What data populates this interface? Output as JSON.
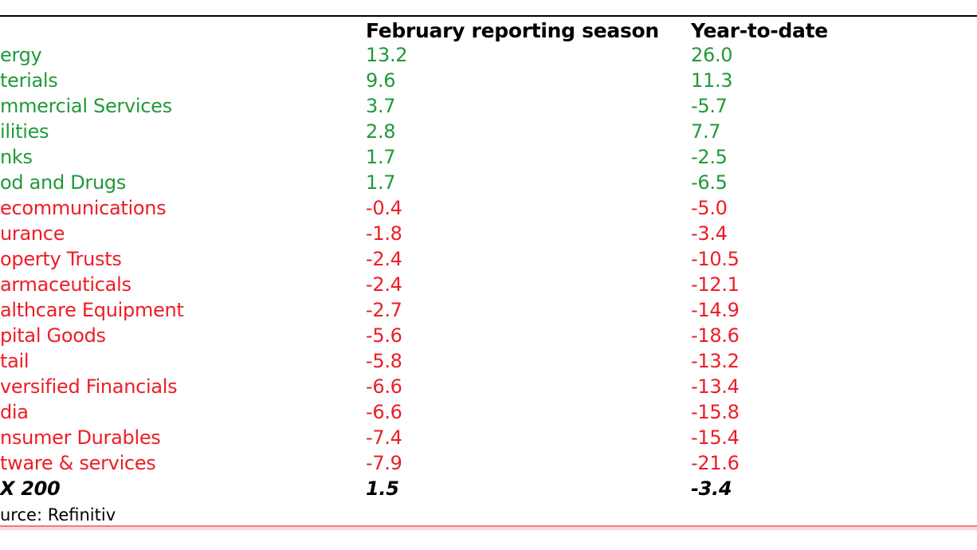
{
  "colors": {
    "positive": "#1f9a3a",
    "negative": "#ee1c25",
    "total": "#000000"
  },
  "chart_data": {
    "type": "table",
    "columns": [
      "",
      "February reporting season",
      "Year-to-date"
    ],
    "rows": [
      {
        "sector": "ergy",
        "feb": "13.2",
        "ytd": "26.0",
        "tone": "positive"
      },
      {
        "sector": "terials",
        "feb": "9.6",
        "ytd": "11.3",
        "tone": "positive"
      },
      {
        "sector": "mmercial Services",
        "feb": "3.7",
        "ytd": "-5.7",
        "tone": "positive"
      },
      {
        "sector": "ilities",
        "feb": "2.8",
        "ytd": "7.7",
        "tone": "positive"
      },
      {
        "sector": "nks",
        "feb": "1.7",
        "ytd": "-2.5",
        "tone": "positive"
      },
      {
        "sector": "od and Drugs",
        "feb": "1.7",
        "ytd": "-6.5",
        "tone": "positive"
      },
      {
        "sector": "ecommunications",
        "feb": "-0.4",
        "ytd": "-5.0",
        "tone": "negative"
      },
      {
        "sector": "urance",
        "feb": "-1.8",
        "ytd": "-3.4",
        "tone": "negative"
      },
      {
        "sector": "operty Trusts",
        "feb": "-2.4",
        "ytd": "-10.5",
        "tone": "negative"
      },
      {
        "sector": "armaceuticals",
        "feb": "-2.4",
        "ytd": "-12.1",
        "tone": "negative"
      },
      {
        "sector": "althcare Equipment",
        "feb": "-2.7",
        "ytd": "-14.9",
        "tone": "negative"
      },
      {
        "sector": "pital Goods",
        "feb": "-5.6",
        "ytd": "-18.6",
        "tone": "negative"
      },
      {
        "sector": "tail",
        "feb": "-5.8",
        "ytd": "-13.2",
        "tone": "negative"
      },
      {
        "sector": "versified Financials",
        "feb": "-6.6",
        "ytd": "-13.4",
        "tone": "negative"
      },
      {
        "sector": "dia",
        "feb": "-6.6",
        "ytd": "-15.8",
        "tone": "negative"
      },
      {
        "sector": "nsumer Durables",
        "feb": "-7.4",
        "ytd": "-15.4",
        "tone": "negative"
      },
      {
        "sector": "tware & services",
        "feb": "-7.9",
        "ytd": "-21.6",
        "tone": "negative"
      }
    ],
    "total": {
      "sector": "X 200",
      "feb": "1.5",
      "ytd": "-3.4"
    },
    "source": "urce: Refinitiv"
  }
}
